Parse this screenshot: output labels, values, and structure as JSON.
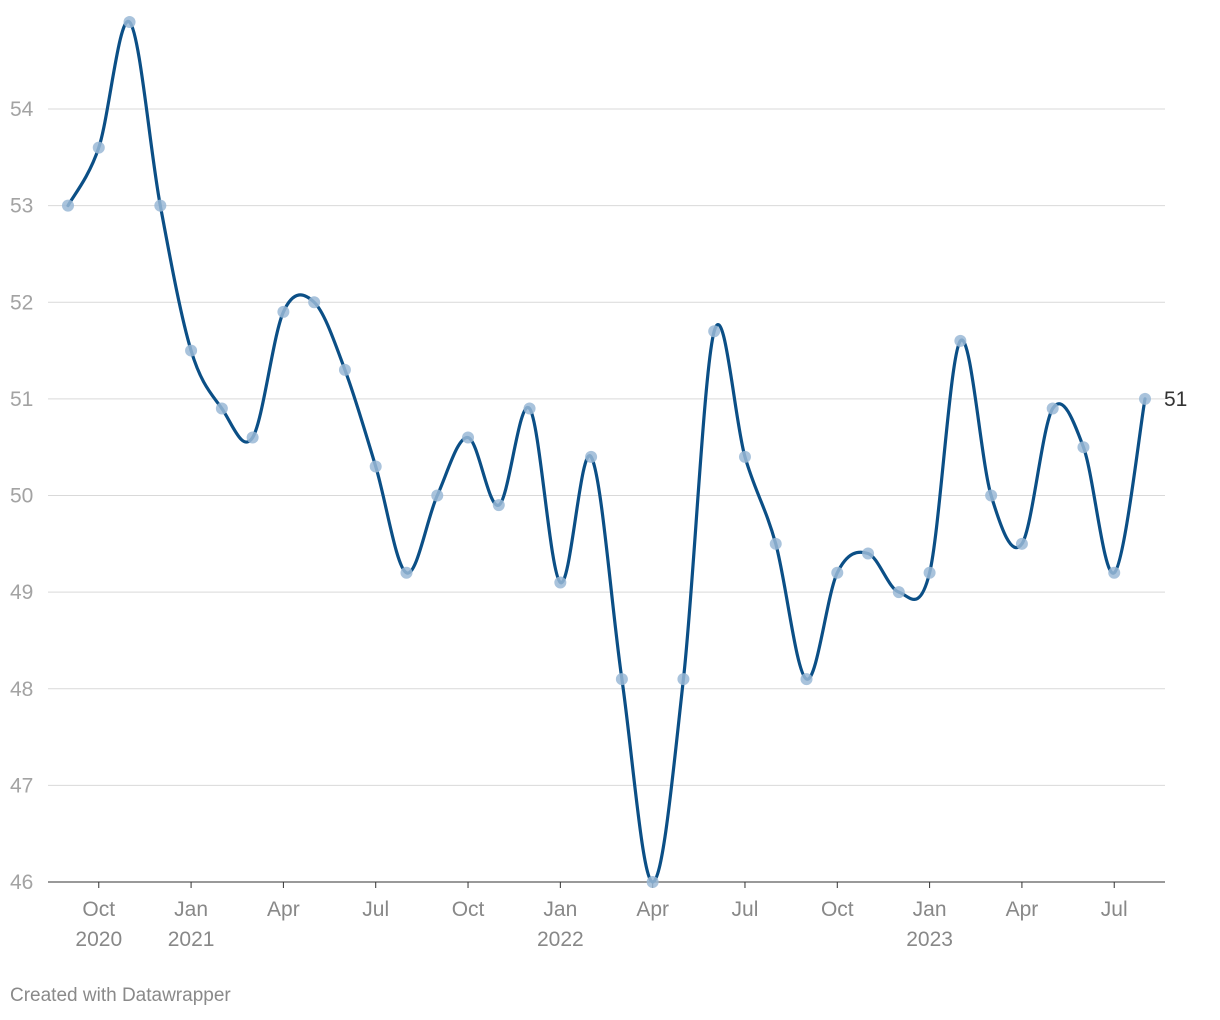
{
  "chart_data": {
    "type": "line",
    "x": [
      "2020-09",
      "2020-10",
      "2020-11",
      "2020-12",
      "2021-01",
      "2021-02",
      "2021-03",
      "2021-04",
      "2021-05",
      "2021-06",
      "2021-07",
      "2021-08",
      "2021-09",
      "2021-10",
      "2021-11",
      "2021-12",
      "2022-01",
      "2022-02",
      "2022-03",
      "2022-04",
      "2022-05",
      "2022-06",
      "2022-07",
      "2022-08",
      "2022-09",
      "2022-10",
      "2022-11",
      "2022-12",
      "2023-01",
      "2023-02",
      "2023-03",
      "2023-04",
      "2023-05",
      "2023-06",
      "2023-07",
      "2023-08"
    ],
    "series": [
      {
        "values": [
          53.0,
          53.6,
          54.9,
          53.0,
          51.5,
          50.9,
          50.6,
          51.9,
          52.0,
          51.3,
          50.3,
          49.2,
          50.0,
          50.6,
          49.9,
          50.9,
          49.1,
          50.4,
          48.1,
          46.0,
          48.1,
          51.7,
          50.4,
          49.5,
          48.1,
          49.2,
          49.4,
          49.0,
          49.2,
          51.6,
          50.0,
          49.5,
          50.9,
          50.5,
          49.2,
          51.0
        ],
        "color": "#0b4f86"
      }
    ],
    "y_ticks": [
      "46",
      "47",
      "48",
      "49",
      "50",
      "51",
      "52",
      "53",
      "54"
    ],
    "ylim": [
      46,
      54.9
    ],
    "x_ticks": [
      {
        "x": "2020-10",
        "line1": "Oct",
        "line2": "2020"
      },
      {
        "x": "2021-01",
        "line1": "Jan",
        "line2": "2021"
      },
      {
        "x": "2021-04",
        "line1": "Apr",
        "line2": ""
      },
      {
        "x": "2021-07",
        "line1": "Jul",
        "line2": ""
      },
      {
        "x": "2021-10",
        "line1": "Oct",
        "line2": ""
      },
      {
        "x": "2022-01",
        "line1": "Jan",
        "line2": "2022"
      },
      {
        "x": "2022-04",
        "line1": "Apr",
        "line2": ""
      },
      {
        "x": "2022-07",
        "line1": "Jul",
        "line2": ""
      },
      {
        "x": "2022-10",
        "line1": "Oct",
        "line2": ""
      },
      {
        "x": "2023-01",
        "line1": "Jan",
        "line2": "2023"
      },
      {
        "x": "2023-04",
        "line1": "Apr",
        "line2": ""
      },
      {
        "x": "2023-07",
        "line1": "Jul",
        "line2": ""
      }
    ],
    "end_label": "51",
    "grid": true,
    "line_style": "smooth-curve-with-markers"
  },
  "footer": {
    "credit": "Created with Datawrapper"
  }
}
